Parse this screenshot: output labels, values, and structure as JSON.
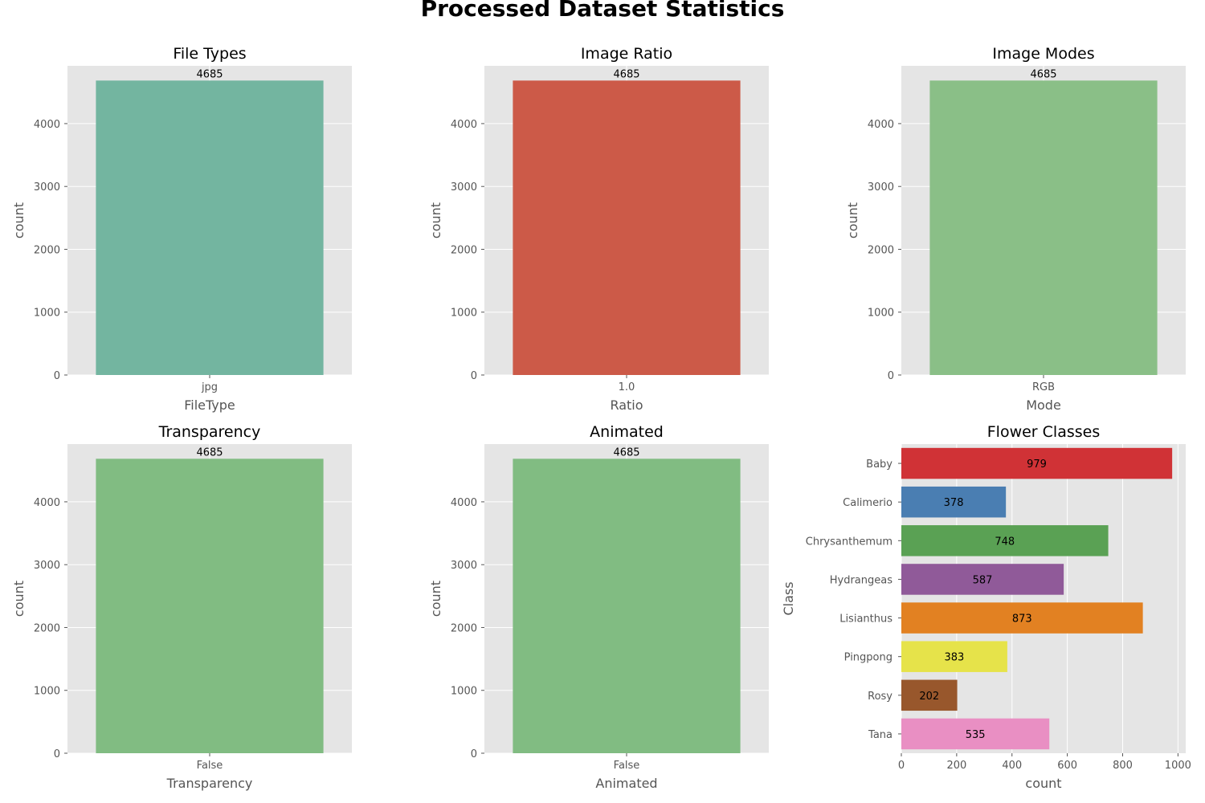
{
  "figure": {
    "title": "Processed Dataset Statistics"
  },
  "chart_data": [
    {
      "type": "bar",
      "title": "File Types",
      "xlabel": "FileType",
      "ylabel": "count",
      "categories": [
        "jpg"
      ],
      "values": [
        4685
      ],
      "data_labels": [
        "4685"
      ],
      "ylim": [
        0,
        4919
      ],
      "yticks": [
        0,
        1000,
        2000,
        3000,
        4000
      ],
      "colors": [
        "#73b5a0"
      ],
      "grid": true
    },
    {
      "type": "bar",
      "title": "Image Ratio",
      "xlabel": "Ratio",
      "ylabel": "count",
      "categories": [
        "1.0"
      ],
      "values": [
        4685
      ],
      "data_labels": [
        "4685"
      ],
      "ylim": [
        0,
        4919
      ],
      "yticks": [
        0,
        1000,
        2000,
        3000,
        4000
      ],
      "colors": [
        "#cc5a48"
      ],
      "grid": true
    },
    {
      "type": "bar",
      "title": "Image Modes",
      "xlabel": "Mode",
      "ylabel": "count",
      "categories": [
        "RGB"
      ],
      "values": [
        4685
      ],
      "data_labels": [
        "4685"
      ],
      "ylim": [
        0,
        4919
      ],
      "yticks": [
        0,
        1000,
        2000,
        3000,
        4000
      ],
      "colors": [
        "#8abf87"
      ],
      "grid": true
    },
    {
      "type": "bar",
      "title": "Transparency",
      "xlabel": "Transparency",
      "ylabel": "count",
      "categories": [
        "False"
      ],
      "values": [
        4685
      ],
      "data_labels": [
        "4685"
      ],
      "ylim": [
        0,
        4919
      ],
      "yticks": [
        0,
        1000,
        2000,
        3000,
        4000
      ],
      "colors": [
        "#81bc82"
      ],
      "grid": true
    },
    {
      "type": "bar",
      "title": "Animated",
      "xlabel": "Animated",
      "ylabel": "count",
      "categories": [
        "False"
      ],
      "values": [
        4685
      ],
      "data_labels": [
        "4685"
      ],
      "ylim": [
        0,
        4919
      ],
      "yticks": [
        0,
        1000,
        2000,
        3000,
        4000
      ],
      "colors": [
        "#81bc82"
      ],
      "grid": true
    },
    {
      "type": "bar",
      "orientation": "horizontal",
      "title": "Flower Classes",
      "xlabel": "count",
      "ylabel": "Class",
      "categories": [
        "Baby",
        "Calimerio",
        "Chrysanthemum",
        "Hydrangeas",
        "Lisianthus",
        "Pingpong",
        "Rosy",
        "Tana"
      ],
      "values": [
        979,
        378,
        748,
        587,
        873,
        383,
        202,
        535
      ],
      "data_labels": [
        "979",
        "378",
        "748",
        "587",
        "873",
        "383",
        "202",
        "535"
      ],
      "xlim": [
        0,
        1028
      ],
      "xticks": [
        0,
        200,
        400,
        600,
        800,
        1000
      ],
      "colors": [
        "#d03236",
        "#4a7eb2",
        "#5aa154",
        "#905a99",
        "#e28122",
        "#e6e34a",
        "#98572c",
        "#e98fc3"
      ],
      "grid": true
    }
  ]
}
